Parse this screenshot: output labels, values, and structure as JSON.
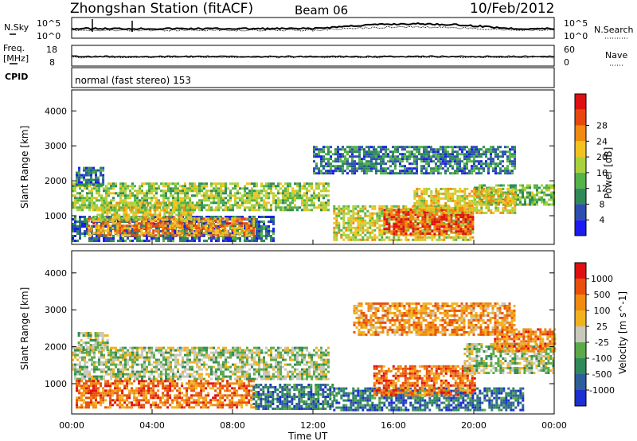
{
  "header": {
    "station": "Zhongshan Station (fitACF)",
    "beam": "Beam 06",
    "date": "10/Feb/2012"
  },
  "noise_panel": {
    "left_label": "N.Sky",
    "left_ticks": [
      "10^5",
      "10^0"
    ],
    "right_label": "N.Search",
    "right_ticks": [
      "10^5",
      "10^0"
    ]
  },
  "freq_panel": {
    "left_label_top": "Freq.",
    "left_label_bottom": "[MHz]",
    "left_ticks": [
      "18",
      "8"
    ],
    "right_label": "Nave",
    "right_ticks": [
      "60",
      "0"
    ]
  },
  "cpid_panel": {
    "label": "CPID",
    "mode": "normal (fast stereo) 153"
  },
  "chart_data": [
    {
      "type": "heatmap",
      "quantity": "Power",
      "ylabel": "Slant Range [km]",
      "xlabel": "",
      "ylim": [
        180,
        4600
      ],
      "yticks": [
        1000,
        2000,
        3000,
        4000
      ],
      "xlim": [
        0,
        24
      ],
      "xticks": [
        "00:00",
        "04:00",
        "08:00",
        "12:00",
        "16:00",
        "20:00",
        "00:00"
      ],
      "colorbar": {
        "label": "Power [dB]",
        "ticks": [
          "4",
          "8",
          "12",
          "16",
          "20",
          "24",
          "28"
        ],
        "colors": [
          "#1c1cf0",
          "#2e4fb0",
          "#2f8a5a",
          "#55b348",
          "#a8d23c",
          "#f2c21e",
          "#f08a10",
          "#e8480c",
          "#e01010"
        ]
      },
      "regions": [
        {
          "t0": 0.0,
          "t1": 12.8,
          "r0": 1150,
          "r1": 1950,
          "level": 0.45
        },
        {
          "t0": 0.2,
          "t1": 1.6,
          "r0": 1900,
          "r1": 2400,
          "level": 0.2
        },
        {
          "t0": 0.0,
          "t1": 10.0,
          "r0": 300,
          "r1": 1000,
          "level": 0.2
        },
        {
          "t0": 0.8,
          "t1": 9.0,
          "r0": 450,
          "r1": 950,
          "level": 0.72
        },
        {
          "t0": 1.0,
          "t1": 6.0,
          "r0": 900,
          "r1": 1400,
          "level": 0.55
        },
        {
          "t0": 13.0,
          "t1": 20.0,
          "r0": 300,
          "r1": 1300,
          "level": 0.55
        },
        {
          "t0": 15.5,
          "t1": 20.0,
          "r0": 500,
          "r1": 1200,
          "level": 0.85
        },
        {
          "t0": 20.0,
          "t1": 24.0,
          "r0": 1300,
          "r1": 1900,
          "level": 0.4
        },
        {
          "t0": 17.0,
          "t1": 22.0,
          "r0": 1100,
          "r1": 1800,
          "level": 0.6
        },
        {
          "t0": 12.0,
          "t1": 22.0,
          "r0": 2200,
          "r1": 3000,
          "level": 0.25
        }
      ]
    },
    {
      "type": "heatmap",
      "quantity": "Velocity",
      "ylabel": "Slant Range [km]",
      "xlabel": "Time UT",
      "ylim": [
        180,
        4600
      ],
      "yticks": [
        1000,
        2000,
        3000,
        4000
      ],
      "xlim": [
        0,
        24
      ],
      "xticks": [
        "00:00",
        "04:00",
        "08:00",
        "12:00",
        "16:00",
        "20:00",
        "00:00"
      ],
      "colorbar": {
        "label": "Velocity [m s^-1]",
        "ticks": [
          "1000",
          "500",
          "100",
          "25",
          "-25",
          "-100",
          "-500",
          "-1000"
        ],
        "colors": [
          "#1c2fd0",
          "#2e5f9a",
          "#2f8a5a",
          "#5aaa4a",
          "#c8c8bc",
          "#f2b21e",
          "#f08a10",
          "#e8500c",
          "#e01010"
        ]
      },
      "regions": [
        {
          "t0": 0.0,
          "t1": 12.8,
          "r0": 1150,
          "r1": 2000,
          "level": 0.45
        },
        {
          "t0": 0.3,
          "t1": 1.8,
          "r0": 1900,
          "r1": 2400,
          "level": 0.45
        },
        {
          "t0": 0.2,
          "t1": 9.0,
          "r0": 350,
          "r1": 1100,
          "level": 0.78
        },
        {
          "t0": 9.0,
          "t1": 13.0,
          "r0": 300,
          "r1": 1000,
          "level": 0.25
        },
        {
          "t0": 13.0,
          "t1": 22.5,
          "r0": 300,
          "r1": 900,
          "level": 0.2
        },
        {
          "t0": 15.0,
          "t1": 20.0,
          "r0": 700,
          "r1": 1500,
          "level": 0.78
        },
        {
          "t0": 19.5,
          "t1": 24.0,
          "r0": 1300,
          "r1": 2100,
          "level": 0.45
        },
        {
          "t0": 21.0,
          "t1": 24.0,
          "r0": 1900,
          "r1": 2500,
          "level": 0.75
        },
        {
          "t0": 14.0,
          "t1": 22.0,
          "r0": 2300,
          "r1": 3200,
          "level": 0.7
        }
      ]
    }
  ]
}
